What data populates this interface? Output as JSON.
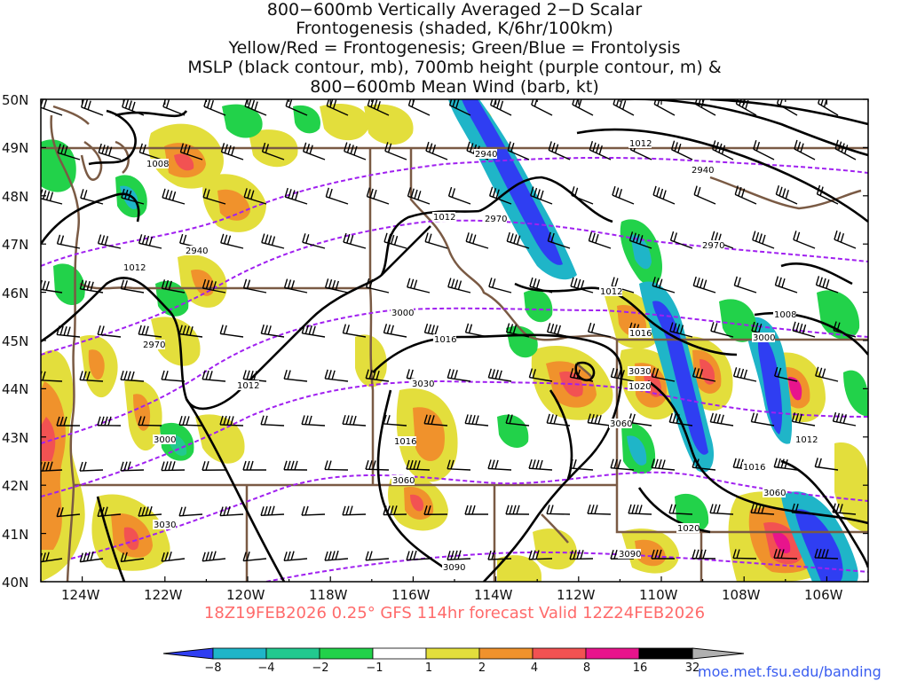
{
  "title_lines": [
    "800−600mb Vertically Averaged 2−D Scalar",
    "Frontogenesis (shaded, K/6hr/100km)",
    "Yellow/Red = Frontogenesis;  Green/Blue = Frontolysis",
    "MSLP (black contour, mb), 700mb height (purple contour, m) &",
    "800−600mb Mean Wind (barb, kt)"
  ],
  "latitudes": [
    "50N",
    "49N",
    "48N",
    "47N",
    "46N",
    "45N",
    "44N",
    "43N",
    "42N",
    "41N",
    "40N"
  ],
  "longitudes": [
    "124W",
    "122W",
    "120W",
    "118W",
    "116W",
    "114W",
    "112W",
    "110W",
    "108W",
    "106W"
  ],
  "map": {
    "lat_range": [
      40,
      50
    ],
    "lon_range": [
      -125,
      -105
    ],
    "shading_units": "K/6hr/100km"
  },
  "contour_labels": {
    "mslp": [
      "1008",
      "1012",
      "1012",
      "1012",
      "1012",
      "1012",
      "1016",
      "1016",
      "1016",
      "1016",
      "1020",
      "1020",
      "1012",
      "1008"
    ],
    "height": [
      "2940",
      "2940",
      "2940",
      "2970",
      "2970",
      "2970",
      "3000",
      "3000",
      "3000",
      "3030",
      "3030",
      "3030",
      "3060",
      "3060",
      "3060",
      "3090",
      "3090"
    ]
  },
  "colorbar": {
    "labels": [
      "−8",
      "−4",
      "−2",
      "−1",
      "1",
      "2",
      "4",
      "8",
      "16",
      "32"
    ],
    "colors": [
      "#2f3ef2",
      "#1fb5c8",
      "#22c98f",
      "#22d24a",
      "#ffffff",
      "#e3de3c",
      "#f0922c",
      "#f25252",
      "#e8148c",
      "#000000",
      "#b0b0b0"
    ]
  },
  "run_info": "18Z19FEB2026 0.25° GFS 114hr forecast Valid 12Z24FEB2026",
  "credit": "moe.met.fsu.edu/banding"
}
